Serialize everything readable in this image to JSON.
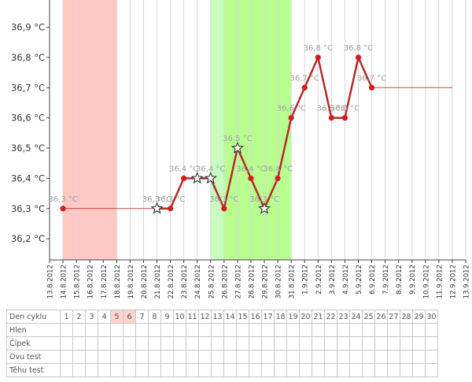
{
  "chart_data": {
    "type": "line",
    "y_ticks": [
      "36,2 °C",
      "36,3 °C",
      "36,4 °C",
      "36,5 °C",
      "36,6 °C",
      "36,7 °C",
      "36,8 °C",
      "36,9 °C"
    ],
    "ylim": [
      36.13,
      36.99
    ],
    "x_dates": [
      "13.8.2012",
      "14.8.2012",
      "15.8.2012",
      "16.8.2012",
      "17.8.2012",
      "18.8.2012",
      "19.8.2012",
      "20.8.2012",
      "21.8.2012",
      "22.8.2012",
      "23.8.2012",
      "24.8.2012",
      "25.8.2012",
      "26.8.2012",
      "27.8.2012",
      "28.8.2012",
      "29.8.2012",
      "30.8.2012",
      "31.8.2012",
      "1.9.2012",
      "2.9.2012",
      "3.9.2012",
      "4.9.2012",
      "5.9.2012",
      "6.9.2012",
      "7.9.2012",
      "8.9.2012",
      "9.9.2012",
      "10.9.2012",
      "11.9.2012",
      "12.9.2012",
      "13.9.2012"
    ],
    "bands": [
      {
        "kind": "menstruation",
        "from": 1,
        "to": 5,
        "color": "#ffc8c3"
      },
      {
        "kind": "fertile",
        "from": 12,
        "to": 13,
        "color": "#c6ffc0"
      },
      {
        "kind": "fertile-peak",
        "from": 13,
        "to": 18,
        "color": "#b8ff90"
      }
    ],
    "series": [
      {
        "line_color": "#b52a2a",
        "points": [
          {
            "x": 1,
            "y": 36.3,
            "marker": "dot",
            "label": "36,3 °C"
          },
          {
            "x": 8,
            "y": 36.3,
            "marker": "star",
            "label": "36,3 °C"
          },
          {
            "x": 9,
            "y": 36.3,
            "marker": "dot",
            "label": "36,3 °C"
          },
          {
            "x": 10,
            "y": 36.4,
            "marker": "dot",
            "label": "36,4 °C"
          },
          {
            "x": 11,
            "y": 36.4,
            "marker": "star",
            "label": ""
          },
          {
            "x": 12,
            "y": 36.4,
            "marker": "star",
            "label": "36,4 °C"
          },
          {
            "x": 13,
            "y": 36.3,
            "marker": "dot",
            "label": "36,3 °C"
          },
          {
            "x": 14,
            "y": 36.5,
            "marker": "star",
            "label": "36,5 °C"
          },
          {
            "x": 15,
            "y": 36.4,
            "marker": "dot",
            "label": "36,4 °C"
          },
          {
            "x": 16,
            "y": 36.3,
            "marker": "star",
            "label": "36,3 °C"
          },
          {
            "x": 17,
            "y": 36.4,
            "marker": "dot",
            "label": "36,4 °C"
          },
          {
            "x": 18,
            "y": 36.6,
            "marker": "dot",
            "label": "36,6 °C"
          },
          {
            "x": 19,
            "y": 36.7,
            "marker": "dot",
            "label": "36,7 °C"
          },
          {
            "x": 20,
            "y": 36.8,
            "marker": "dot",
            "label": "36,8 °C"
          },
          {
            "x": 21,
            "y": 36.6,
            "marker": "dot",
            "label": "36,6 °C"
          },
          {
            "x": 22,
            "y": 36.6,
            "marker": "dot",
            "label": "36,6 °C"
          },
          {
            "x": 23,
            "y": 36.8,
            "marker": "dot",
            "label": "36,8 °C"
          },
          {
            "x": 24,
            "y": 36.7,
            "marker": "dot",
            "label": "36,7 °C"
          }
        ],
        "flat_lines": [
          {
            "from": 1,
            "to": 8,
            "y": 36.3
          },
          {
            "from": 24,
            "to": 30,
            "y": 36.7
          }
        ]
      }
    ]
  },
  "table": {
    "rows": [
      "Den cyklu",
      "Hlen",
      "Čípek",
      "Ovu test",
      "Těhu test"
    ],
    "days": [
      "1",
      "2",
      "3",
      "4",
      "5",
      "6",
      "7",
      "8",
      "9",
      "10",
      "11",
      "12",
      "13",
      "14",
      "15",
      "16",
      "17",
      "18",
      "19",
      "20",
      "21",
      "22",
      "23",
      "24",
      "25",
      "26",
      "27",
      "28",
      "29",
      "30"
    ],
    "highlight_days": [
      "5",
      "6"
    ],
    "highlight_color": "#ffd3cc"
  }
}
